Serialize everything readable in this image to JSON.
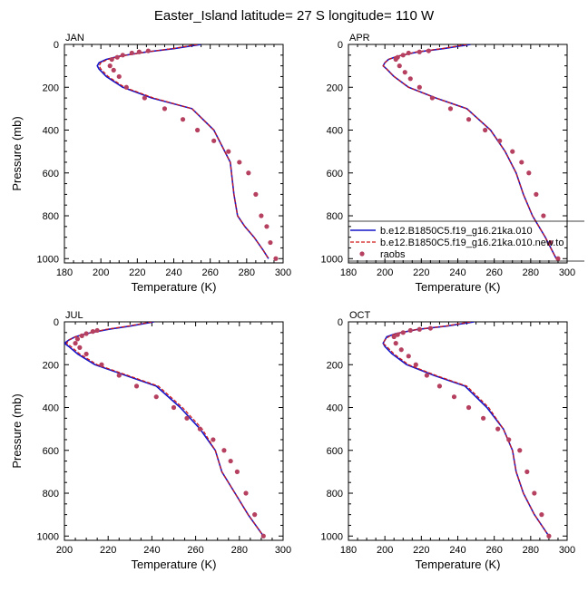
{
  "figure": {
    "title": "Easter_Island  latitude= 27 S longitude= 110 W"
  },
  "colors": {
    "model_1": "#1515c9",
    "model_2": "#d01818",
    "raobs": "#b5405f",
    "axis": "#000000"
  },
  "legend": {
    "entries": [
      {
        "label": "b.e12.B1850C5.f19_g16.21ka.010",
        "style": "solid",
        "series": "model_1"
      },
      {
        "label": "b.e12.B1850C5.f19_g16.21ka.010.new.to",
        "style": "dashed",
        "series": "model_2"
      },
      {
        "label": "raobs",
        "style": "dots",
        "series": "raobs"
      }
    ]
  },
  "chart_data": [
    {
      "type": "line",
      "panel_label": "JAN",
      "xlabel": "Temperature (K)",
      "ylabel": "Pressure (mb)",
      "xlim": [
        180,
        300
      ],
      "ylim": [
        1020,
        0
      ],
      "xticks": [
        180,
        200,
        220,
        240,
        260,
        280,
        300
      ],
      "yticks": [
        0,
        200,
        400,
        600,
        800,
        1000
      ],
      "show_legend": false,
      "series": [
        {
          "name": "b.e12.B1850C5.f19_g16.21ka.010",
          "style": "solid",
          "x": [
            255,
            240,
            225,
            210,
            203,
            199,
            198,
            199,
            203,
            212,
            228,
            250,
            262,
            271,
            273,
            275,
            279,
            284,
            289,
            292
          ],
          "y": [
            0,
            20,
            35,
            55,
            70,
            85,
            100,
            115,
            150,
            200,
            250,
            300,
            400,
            550,
            700,
            800,
            850,
            900,
            960,
            1000
          ]
        },
        {
          "name": "b.e12.B1850C5.f19_g16.21ka.010.new.to",
          "style": "dashed",
          "x": [
            253,
            239,
            225,
            211,
            204,
            200,
            199,
            200,
            204,
            213,
            229,
            250,
            262,
            271,
            273,
            275,
            279,
            284,
            289,
            292
          ],
          "y": [
            0,
            20,
            35,
            55,
            70,
            85,
            100,
            115,
            150,
            200,
            250,
            300,
            400,
            550,
            700,
            800,
            850,
            900,
            960,
            1000
          ]
        },
        {
          "name": "raobs",
          "style": "dots",
          "x": [
            226,
            221,
            217,
            212,
            209,
            206,
            205,
            207,
            210,
            214,
            224,
            235,
            245,
            253,
            262,
            270,
            276,
            281,
            285,
            288,
            291,
            293,
            296
          ],
          "y": [
            30,
            35,
            40,
            50,
            60,
            70,
            100,
            120,
            150,
            200,
            250,
            300,
            350,
            400,
            450,
            500,
            550,
            600,
            700,
            800,
            850,
            925,
            1000
          ]
        }
      ]
    },
    {
      "type": "line",
      "panel_label": "APR",
      "xlabel": "Temperature (K)",
      "ylabel": "",
      "xlim": [
        180,
        300
      ],
      "ylim": [
        1020,
        0
      ],
      "xticks": [
        180,
        200,
        220,
        240,
        260,
        280,
        300
      ],
      "yticks": [
        0,
        200,
        400,
        600,
        800,
        1000
      ],
      "show_legend": true,
      "series": [
        {
          "name": "b.e12.B1850C5.f19_g16.21ka.010",
          "style": "solid",
          "x": [
            247,
            232,
            218,
            207,
            202,
            200,
            199,
            201,
            205,
            213,
            228,
            245,
            258,
            266,
            272,
            276,
            281,
            288,
            294
          ],
          "y": [
            0,
            20,
            35,
            55,
            70,
            85,
            100,
            115,
            150,
            200,
            250,
            300,
            400,
            500,
            600,
            700,
            800,
            900,
            1000
          ]
        },
        {
          "name": "b.e12.B1850C5.f19_g16.21ka.010.new.to",
          "style": "dashed",
          "x": [
            245,
            231,
            217,
            207,
            202,
            200,
            199,
            201,
            205,
            213,
            228,
            245,
            258,
            266,
            272,
            276,
            281,
            288,
            294
          ],
          "y": [
            0,
            20,
            35,
            55,
            70,
            85,
            100,
            115,
            150,
            200,
            250,
            300,
            400,
            500,
            600,
            700,
            800,
            900,
            1000
          ]
        },
        {
          "name": "raobs",
          "style": "dots",
          "x": [
            224,
            219,
            213,
            210,
            207,
            206,
            208,
            211,
            214,
            219,
            226,
            236,
            246,
            255,
            263,
            270,
            275,
            279,
            283,
            287,
            291,
            295
          ],
          "y": [
            30,
            35,
            40,
            50,
            60,
            70,
            100,
            130,
            160,
            200,
            250,
            300,
            350,
            400,
            450,
            500,
            550,
            600,
            700,
            800,
            925,
            1000
          ]
        }
      ]
    },
    {
      "type": "line",
      "panel_label": "JUL",
      "xlabel": "Temperature (K)",
      "ylabel": "Pressure (mb)",
      "xlim": [
        200,
        300
      ],
      "ylim": [
        1020,
        0
      ],
      "xticks": [
        200,
        220,
        240,
        260,
        280,
        300
      ],
      "yticks": [
        0,
        200,
        400,
        600,
        800,
        1000
      ],
      "show_legend": false,
      "series": [
        {
          "name": "b.e12.B1850C5.f19_g16.21ka.010",
          "style": "solid",
          "x": [
            241,
            230,
            220,
            210,
            205,
            202,
            200,
            202,
            206,
            214,
            228,
            242,
            253,
            262,
            269,
            272,
            278,
            284,
            291
          ],
          "y": [
            0,
            20,
            35,
            55,
            70,
            85,
            100,
            115,
            150,
            200,
            250,
            300,
            400,
            500,
            600,
            700,
            800,
            900,
            1000
          ]
        },
        {
          "name": "b.e12.B1850C5.f19_g16.21ka.010.new.to",
          "style": "dashed",
          "x": [
            240,
            229,
            219,
            210,
            205,
            202,
            201,
            203,
            207,
            215,
            229,
            243,
            254,
            263,
            269,
            272,
            278,
            284,
            291
          ],
          "y": [
            0,
            20,
            35,
            55,
            70,
            85,
            100,
            115,
            150,
            200,
            250,
            300,
            400,
            500,
            600,
            700,
            800,
            900,
            1000
          ]
        },
        {
          "name": "raobs",
          "style": "dots",
          "x": [
            215,
            213,
            210,
            208,
            206,
            205,
            207,
            210,
            217,
            225,
            233,
            242,
            250,
            256,
            262,
            268,
            273,
            276,
            279,
            283,
            287,
            291
          ],
          "y": [
            40,
            45,
            55,
            65,
            80,
            100,
            120,
            150,
            200,
            250,
            300,
            350,
            400,
            450,
            500,
            550,
            600,
            650,
            700,
            800,
            900,
            1000
          ]
        }
      ]
    },
    {
      "type": "line",
      "panel_label": "OCT",
      "xlabel": "Temperature (K)",
      "ylabel": "",
      "xlim": [
        180,
        300
      ],
      "ylim": [
        1020,
        0
      ],
      "xticks": [
        180,
        200,
        220,
        240,
        260,
        280,
        300
      ],
      "yticks": [
        0,
        200,
        400,
        600,
        800,
        1000
      ],
      "show_legend": false,
      "series": [
        {
          "name": "b.e12.B1850C5.f19_g16.21ka.010",
          "style": "solid",
          "x": [
            249,
            234,
            218,
            206,
            201,
            200,
            199,
            200,
            204,
            212,
            227,
            244,
            256,
            265,
            270,
            272,
            276,
            282,
            290
          ],
          "y": [
            0,
            20,
            35,
            55,
            70,
            85,
            100,
            115,
            150,
            200,
            250,
            300,
            400,
            500,
            600,
            700,
            800,
            900,
            1000
          ]
        },
        {
          "name": "b.e12.B1850C5.f19_g16.21ka.010.new.to",
          "style": "dashed",
          "x": [
            247,
            233,
            218,
            206,
            202,
            200,
            199,
            201,
            205,
            213,
            228,
            245,
            257,
            265,
            270,
            272,
            276,
            282,
            290
          ],
          "y": [
            0,
            20,
            35,
            55,
            70,
            85,
            100,
            115,
            150,
            200,
            250,
            300,
            400,
            500,
            600,
            700,
            800,
            900,
            1000
          ]
        },
        {
          "name": "raobs",
          "style": "dots",
          "x": [
            225,
            219,
            214,
            210,
            207,
            205,
            206,
            209,
            213,
            217,
            223,
            230,
            238,
            246,
            254,
            262,
            268,
            274,
            278,
            282,
            286,
            290
          ],
          "y": [
            30,
            35,
            40,
            50,
            60,
            70,
            100,
            130,
            160,
            200,
            250,
            300,
            350,
            400,
            450,
            500,
            550,
            600,
            700,
            800,
            900,
            1000
          ]
        }
      ]
    }
  ]
}
